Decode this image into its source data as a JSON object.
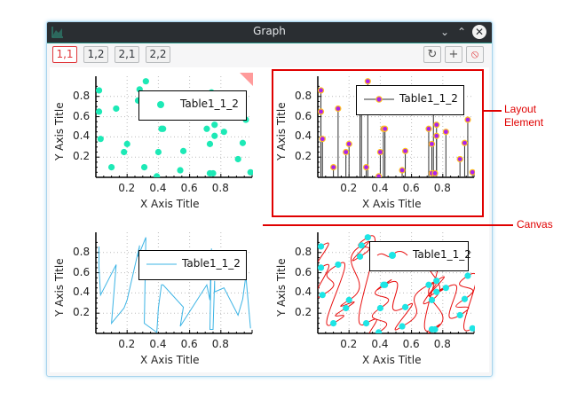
{
  "window": {
    "title": "Graph",
    "controls": {
      "minimize": "⌄",
      "maximize": "⌃",
      "close": "✕"
    }
  },
  "toolbar": {
    "tabs": [
      {
        "label": "1,1",
        "active": true
      },
      {
        "label": "1,2",
        "active": false
      },
      {
        "label": "2,1",
        "active": false
      },
      {
        "label": "2,2",
        "active": false
      }
    ],
    "buttons": [
      {
        "name": "refresh-icon",
        "glyph": "↻"
      },
      {
        "name": "add-icon",
        "glyph": "+"
      },
      {
        "name": "remove-icon",
        "glyph": "⦸"
      }
    ]
  },
  "annotations": {
    "layout_element_line1": "Layout",
    "layout_element_line2": "Element",
    "canvas": "Canvas"
  },
  "colors": {
    "accent_active": "#e0363a",
    "scatter": "#1de9b6",
    "line": "#3cb4e5",
    "drop_marker_fill": "#aa22ee",
    "drop_marker_edge": "#ffc020",
    "spline": "#e81010",
    "spline_marker": "#1ee5e5",
    "annotation_red": "#e00000"
  },
  "plots": [
    {
      "id": "1,1",
      "legend": "Table1_1_2",
      "x_title": "X Axis Title",
      "y_title": "Y Axis Title",
      "style": "scatter"
    },
    {
      "id": "1,2",
      "legend": "Table1_1_2",
      "x_title": "X Axis Title",
      "y_title": "Y Axis Title",
      "style": "dropline"
    },
    {
      "id": "2,1",
      "legend": "Table1_1_2",
      "x_title": "X Axis Title",
      "y_title": "Y Axis Title",
      "style": "line"
    },
    {
      "id": "2,2",
      "legend": "Table1_1_2",
      "x_title": "X Axis Title",
      "y_title": "Y Axis Title",
      "style": "spline"
    }
  ],
  "ticks": {
    "x": [
      "0.2",
      "0.4",
      "0.6",
      "0.8"
    ],
    "y": [
      "0.8",
      "0.6",
      "0.4",
      "0.2"
    ]
  },
  "chart_data": [
    {
      "type": "scatter",
      "title": "",
      "xlabel": "X Axis Title",
      "ylabel": "Y Axis Title",
      "xlim": [
        0,
        1
      ],
      "ylim": [
        0,
        1
      ],
      "grid": true,
      "legend_position": "top-right",
      "series": [
        {
          "name": "Table1_1_2",
          "x": [
            0.02,
            0.02,
            0.03,
            0.13,
            0.1,
            0.18,
            0.2,
            0.28,
            0.27,
            0.32,
            0.31,
            0.39,
            0.4,
            0.42,
            0.43,
            0.56,
            0.54,
            0.71,
            0.73,
            0.74,
            0.73,
            0.75,
            0.76,
            0.76,
            0.82,
            0.91,
            0.94,
            0.96,
            0.99
          ],
          "y": [
            0.86,
            0.65,
            0.38,
            0.68,
            0.1,
            0.25,
            0.33,
            0.87,
            0.76,
            0.95,
            0.1,
            0.01,
            0.25,
            0.48,
            0.48,
            0.26,
            0.07,
            0.48,
            0.33,
            0.84,
            0.04,
            0.04,
            0.52,
            0.41,
            0.45,
            0.18,
            0.34,
            0.57,
            0.05
          ]
        }
      ]
    },
    {
      "type": "scatter",
      "title": "",
      "xlabel": "X Axis Title",
      "ylabel": "Y Axis Title",
      "xlim": [
        0,
        1
      ],
      "ylim": [
        0,
        1
      ],
      "note": "drop-line style, same data as 1,1"
    },
    {
      "type": "line",
      "title": "",
      "xlabel": "X Axis Title",
      "ylabel": "Y Axis Title",
      "xlim": [
        0,
        1
      ],
      "ylim": [
        0,
        1
      ],
      "note": "line through same data in row order"
    },
    {
      "type": "line",
      "title": "",
      "xlabel": "X Axis Title",
      "ylabel": "Y Axis Title",
      "xlim": [
        0,
        1
      ],
      "ylim": [
        0,
        1
      ],
      "note": "spline with markers, same data"
    }
  ]
}
